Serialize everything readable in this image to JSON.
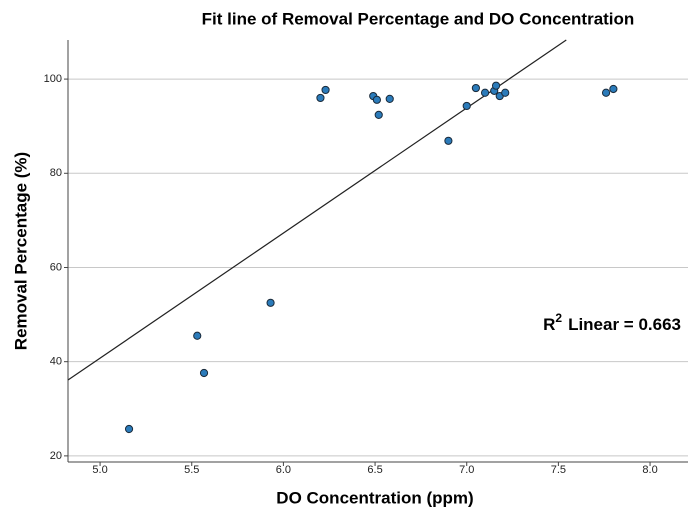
{
  "chart_data": {
    "type": "scatter",
    "title": "Fit line of Removal Percentage and DO Concentration",
    "x_label": "DO Concentration (ppm)",
    "y_label": "Removal Percentage (%)",
    "color": "#2b7bba",
    "x": [
      5.158,
      5.53,
      5.567,
      5.93,
      6.202,
      6.23,
      6.49,
      6.51,
      6.52,
      6.58,
      6.9,
      7.0,
      7.05,
      7.1,
      7.15,
      7.16,
      7.18,
      7.21,
      7.76,
      7.8
    ],
    "values": [
      25.7,
      45.5,
      37.6,
      52.5,
      96.0,
      97.7,
      96.4,
      95.6,
      92.4,
      95.8,
      86.9,
      94.3,
      98.1,
      97.1,
      97.5,
      98.6,
      96.4,
      97.1,
      97.1,
      97.9
    ],
    "fit_line": {
      "x": [
        4.825,
        7.543
      ],
      "values": [
        36.1,
        108.3
      ]
    },
    "annotation": {
      "text": "R",
      "superscript": "2",
      "rest": "Linear = 0.663"
    },
    "xlim": [
      4.825,
      8.207
    ],
    "ylim": [
      18.7,
      108.3
    ],
    "xticks": [
      {
        "value": 5,
        "label": "5.0"
      },
      {
        "value": 5.5,
        "label": "5.5"
      },
      {
        "value": 6,
        "label": "6.0"
      },
      {
        "value": 6.5,
        "label": "6.5"
      },
      {
        "value": 7,
        "label": "7.0"
      },
      {
        "value": 7.5,
        "label": "7.5"
      },
      {
        "value": 8,
        "label": "8.0"
      }
    ],
    "yticks": [
      20,
      40,
      60,
      80,
      100
    ],
    "grid": true
  }
}
